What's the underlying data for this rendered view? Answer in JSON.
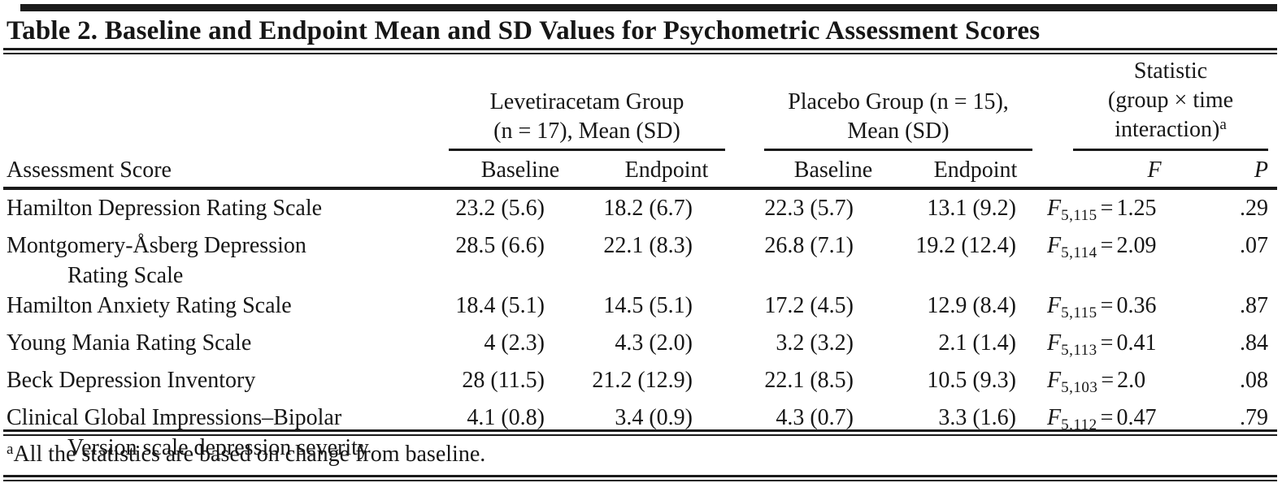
{
  "title": "Table 2. Baseline and Endpoint Mean and SD Values for Psychometric Assessment Scores",
  "header": {
    "row_label": "Assessment Score",
    "groups": [
      {
        "line1": "Levetiracetam Group",
        "line2": "(n = 17), Mean (SD)",
        "sub": [
          "Baseline",
          "Endpoint"
        ]
      },
      {
        "line1": "Placebo Group (n = 15),",
        "line2": "Mean (SD)",
        "sub": [
          "Baseline",
          "Endpoint"
        ]
      },
      {
        "line1": "Statistic",
        "line2": "(group × time",
        "line3": "interaction)",
        "sub": [
          "F",
          "P"
        ]
      }
    ]
  },
  "stat_symbol": "F",
  "equals_sign": "=",
  "rows": [
    {
      "label": "Hamilton Depression Rating Scale",
      "label2": "",
      "lev_baseline": "23.2 (5.6)",
      "lev_endpoint": "18.2 (6.7)",
      "pla_baseline": "22.3 (5.7)",
      "pla_endpoint": "13.1 (9.2)",
      "f_sub": "5,115",
      "f_value": "1.25",
      "p": ".29"
    },
    {
      "label": "Montgomery-Åsberg Depression",
      "label2": "Rating Scale",
      "lev_baseline": "28.5 (6.6)",
      "lev_endpoint": "22.1 (8.3)",
      "pla_baseline": "26.8 (7.1)",
      "pla_endpoint": "19.2 (12.4)",
      "f_sub": "5,114",
      "f_value": "2.09",
      "p": ".07"
    },
    {
      "label": "Hamilton Anxiety Rating Scale",
      "label2": "",
      "lev_baseline": "18.4 (5.1)",
      "lev_endpoint": "14.5 (5.1)",
      "pla_baseline": "17.2 (4.5)",
      "pla_endpoint": "12.9 (8.4)",
      "f_sub": "5,115",
      "f_value": "0.36",
      "p": ".87"
    },
    {
      "label": "Young Mania Rating Scale",
      "label2": "",
      "lev_baseline": "4 (2.3)",
      "lev_endpoint": "4.3 (2.0)",
      "pla_baseline": "3.2 (3.2)",
      "pla_endpoint": "2.1 (1.4)",
      "f_sub": "5,113",
      "f_value": "0.41",
      "p": ".84"
    },
    {
      "label": "Beck Depression Inventory",
      "label2": "",
      "lev_baseline": "28 (11.5)",
      "lev_endpoint": "21.2 (12.9)",
      "pla_baseline": "22.1 (8.5)",
      "pla_endpoint": "10.5 (9.3)",
      "f_sub": "5,103",
      "f_value": "2.0",
      "p": ".08"
    },
    {
      "label": "Clinical Global Impressions–Bipolar",
      "label2": "Version scale depression severity",
      "lev_baseline": "4.1 (0.8)",
      "lev_endpoint": "3.4 (0.9)",
      "pla_baseline": "4.3 (0.7)",
      "pla_endpoint": "3.3 (1.6)",
      "f_sub": "5,112",
      "f_value": "0.47",
      "p": ".79"
    }
  ],
  "footnote": {
    "marker": "a",
    "text": "All the statistics are based on change from baseline."
  }
}
